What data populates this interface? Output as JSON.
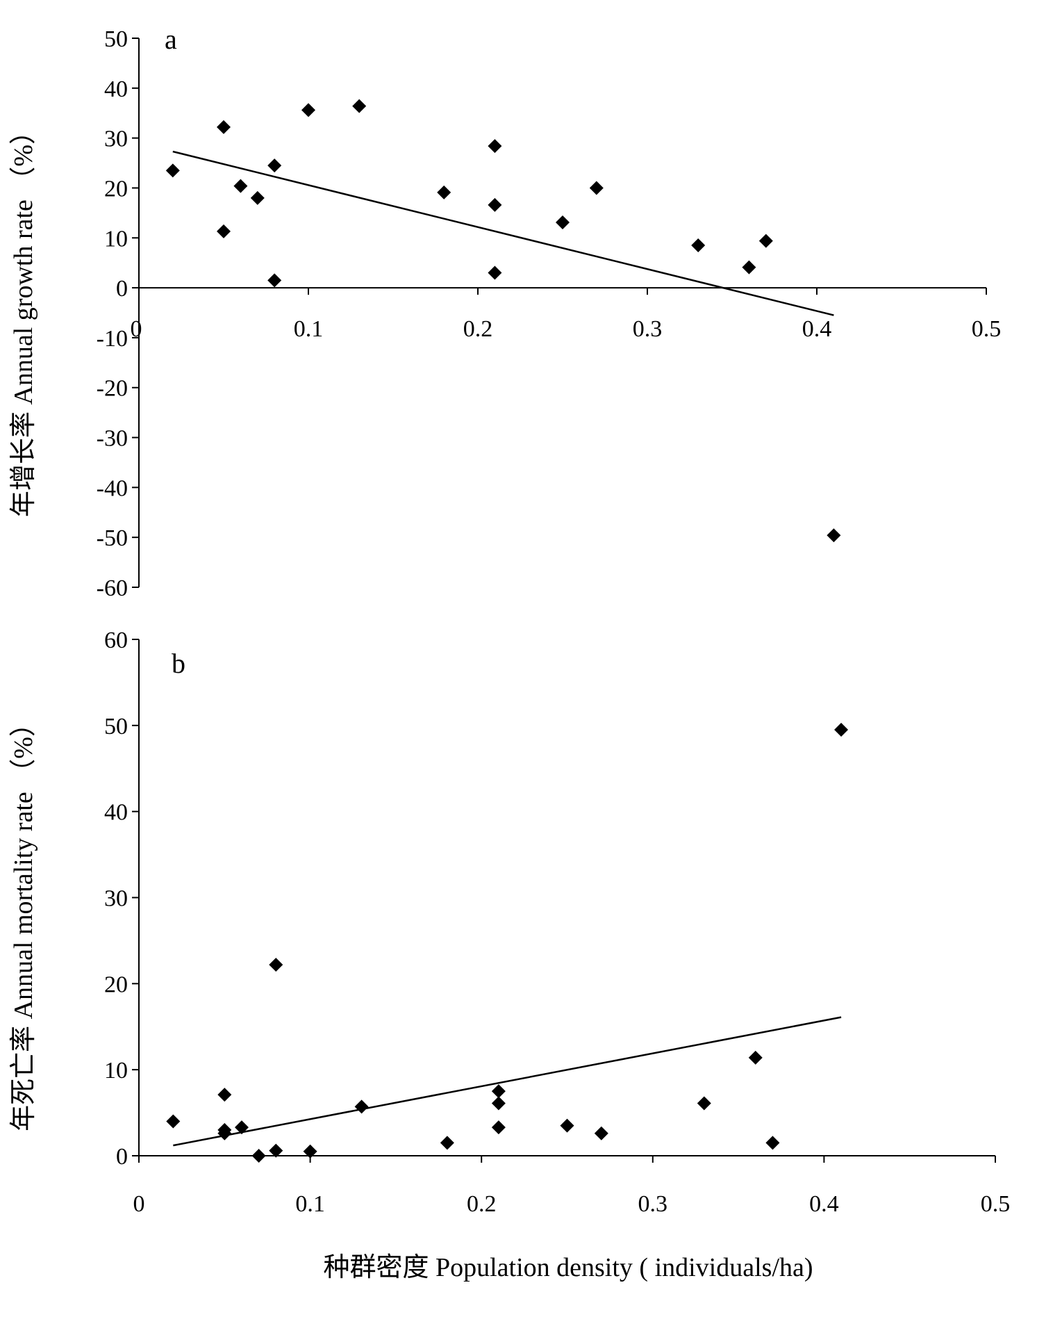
{
  "chart_data": [
    {
      "type": "scatter",
      "panel_label": "a",
      "xlabel": "",
      "ylabel": "年增长率 Annual growth rate （%）",
      "xlim": [
        0,
        0.5
      ],
      "ylim": [
        -60,
        50
      ],
      "x_ticks": [
        "0",
        "0.1",
        "0.2",
        "0.3",
        "0.4",
        "0.5"
      ],
      "y_ticks": [
        "50",
        "40",
        "30",
        "20",
        "10",
        "0",
        "-10",
        "-20",
        "-30",
        "-40",
        "-50",
        "-60"
      ],
      "grid": false,
      "points": [
        {
          "x": 0.02,
          "y": 23.5
        },
        {
          "x": 0.05,
          "y": 32.2
        },
        {
          "x": 0.05,
          "y": 11.3
        },
        {
          "x": 0.06,
          "y": 20.4
        },
        {
          "x": 0.07,
          "y": 18.0
        },
        {
          "x": 0.08,
          "y": 24.5
        },
        {
          "x": 0.08,
          "y": 1.5
        },
        {
          "x": 0.1,
          "y": 35.6
        },
        {
          "x": 0.13,
          "y": 36.4
        },
        {
          "x": 0.18,
          "y": 19.1
        },
        {
          "x": 0.21,
          "y": 28.4
        },
        {
          "x": 0.21,
          "y": 16.6
        },
        {
          "x": 0.21,
          "y": 3.0
        },
        {
          "x": 0.25,
          "y": 13.1
        },
        {
          "x": 0.27,
          "y": 20.0
        },
        {
          "x": 0.33,
          "y": 8.5
        },
        {
          "x": 0.36,
          "y": 4.1
        },
        {
          "x": 0.37,
          "y": 9.4
        },
        {
          "x": 0.41,
          "y": -49.6
        }
      ],
      "trendline": {
        "x": [
          0.02,
          0.41
        ],
        "y": [
          27.3,
          -5.5
        ]
      }
    },
    {
      "type": "scatter",
      "panel_label": "b",
      "xlabel": "种群密度  Population density ( individuals/ha)",
      "ylabel": "年死亡率 Annual mortality rate （%）",
      "xlim": [
        0,
        0.5
      ],
      "ylim": [
        0,
        60
      ],
      "x_ticks": [
        "0",
        "0.1",
        "0.2",
        "0.3",
        "0.4",
        "0.5"
      ],
      "y_ticks": [
        "60",
        "50",
        "40",
        "30",
        "20",
        "10",
        "0"
      ],
      "grid": false,
      "points": [
        {
          "x": 0.02,
          "y": 4.0
        },
        {
          "x": 0.05,
          "y": 7.1
        },
        {
          "x": 0.05,
          "y": 3.0
        },
        {
          "x": 0.05,
          "y": 2.6
        },
        {
          "x": 0.06,
          "y": 3.3
        },
        {
          "x": 0.07,
          "y": 0.0
        },
        {
          "x": 0.08,
          "y": 22.2
        },
        {
          "x": 0.08,
          "y": 0.6
        },
        {
          "x": 0.1,
          "y": 0.5
        },
        {
          "x": 0.13,
          "y": 5.7
        },
        {
          "x": 0.18,
          "y": 1.5
        },
        {
          "x": 0.21,
          "y": 7.5
        },
        {
          "x": 0.21,
          "y": 6.1
        },
        {
          "x": 0.21,
          "y": 3.3
        },
        {
          "x": 0.25,
          "y": 3.5
        },
        {
          "x": 0.27,
          "y": 2.6
        },
        {
          "x": 0.33,
          "y": 6.1
        },
        {
          "x": 0.36,
          "y": 11.4
        },
        {
          "x": 0.37,
          "y": 1.5
        },
        {
          "x": 0.41,
          "y": 49.5
        }
      ],
      "trendline": {
        "x": [
          0.02,
          0.41
        ],
        "y": [
          1.2,
          16.1
        ]
      }
    }
  ]
}
